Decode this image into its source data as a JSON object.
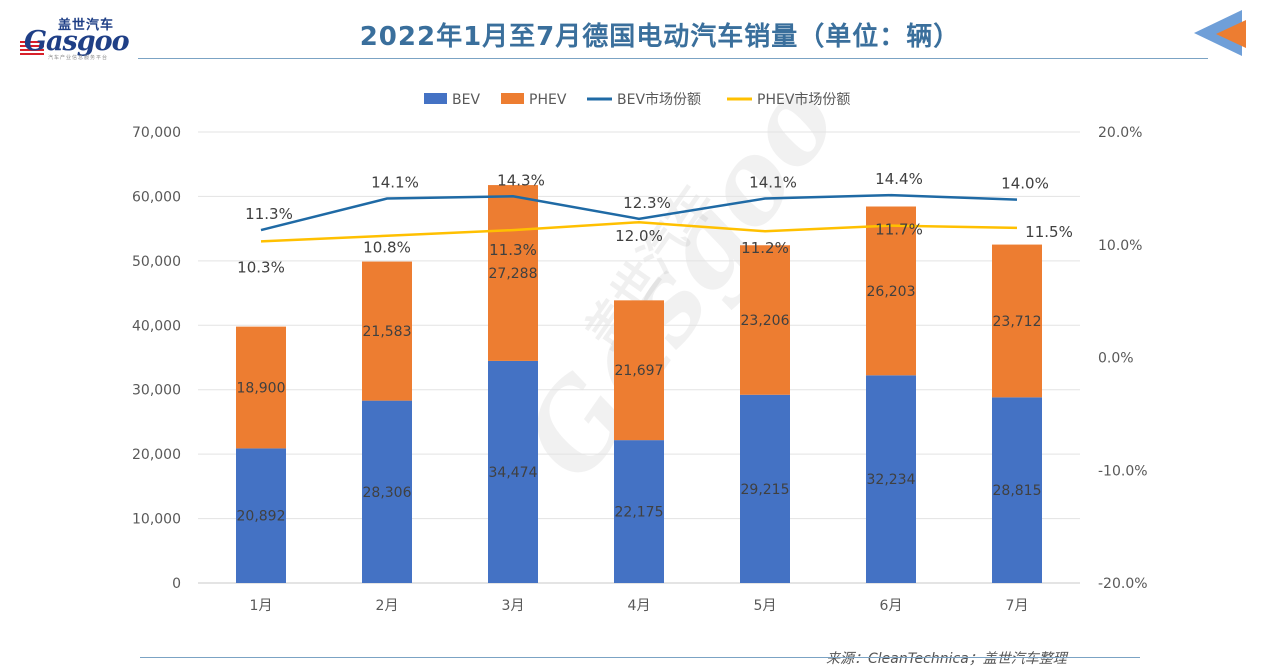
{
  "header": {
    "title": "2022年1月至7月德国电动汽车销量（单位：辆）",
    "logo_cn": "盖世汽车",
    "logo_en": "Gasgoo",
    "logo_sub": "汽车产业信息服务平台"
  },
  "watermark": {
    "en": "Gasgoo",
    "cn": "盖世汽车"
  },
  "source": "来源：CleanTechnica；盖世汽车整理",
  "colors": {
    "bev": "#4472c4",
    "phev": "#ed7d31",
    "bev_share": "#1f6aa5",
    "phev_share": "#ffc000",
    "title": "#3a6f9c",
    "arrow_blue": "#6f9fd8",
    "arrow_orange": "#ed7d31"
  },
  "chart_data": {
    "type": "bar",
    "stacked": true,
    "title": "2022年1月至7月德国电动汽车销量（单位：辆）",
    "categories": [
      "1月",
      "2月",
      "3月",
      "4月",
      "5月",
      "6月",
      "7月"
    ],
    "series": [
      {
        "name": "BEV",
        "type": "bar",
        "axis": "left",
        "values": [
          20892,
          28306,
          34474,
          22175,
          29215,
          32234,
          28815
        ],
        "labels": [
          "20,892",
          "28,306",
          "34,474",
          "22,175",
          "29,215",
          "32,234",
          "28,815"
        ]
      },
      {
        "name": "PHEV",
        "type": "bar",
        "axis": "left",
        "values": [
          18900,
          21583,
          27288,
          21697,
          23206,
          26203,
          23712
        ],
        "labels": [
          "18,900",
          "21,583",
          "27,288",
          "21,697",
          "23,206",
          "26,203",
          "23,712"
        ]
      },
      {
        "name": "BEV市场份额",
        "type": "line",
        "axis": "right",
        "values": [
          11.3,
          14.1,
          14.3,
          12.3,
          14.1,
          14.4,
          14.0
        ],
        "labels": [
          "11.3%",
          "14.1%",
          "14.3%",
          "12.3%",
          "14.1%",
          "14.4%",
          "14.0%"
        ]
      },
      {
        "name": "PHEV市场份额",
        "type": "line",
        "axis": "right",
        "values": [
          10.3,
          10.8,
          11.3,
          12.0,
          11.2,
          11.7,
          11.5
        ],
        "labels": [
          "10.3%",
          "10.8%",
          "11.3%",
          "12.0%",
          "11.2%",
          "11.7%",
          "11.5%"
        ]
      }
    ],
    "y_left": {
      "min": 0,
      "max": 70000,
      "ticks": [
        "70,000",
        "60,000",
        "50,000",
        "40,000",
        "30,000",
        "20,000",
        "10,000",
        "0"
      ]
    },
    "y_right": {
      "min": -20,
      "max": 20,
      "ticks": [
        "20.0%",
        "10.0%",
        "0.0%",
        "-10.0%",
        "-20.0%"
      ]
    },
    "grid": true,
    "legend_position": "top-center"
  }
}
